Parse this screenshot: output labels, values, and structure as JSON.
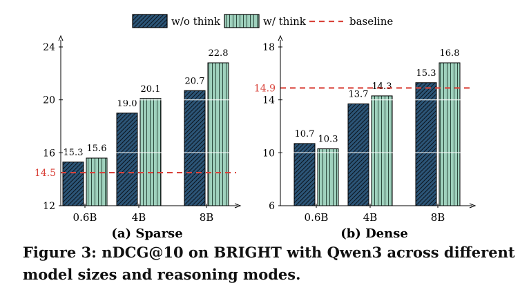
{
  "legend": {
    "wo_label": "w/o think",
    "w_label": "w/ think",
    "baseline_label": "baseline"
  },
  "colors": {
    "wo_fill": "#2c5577",
    "w_fill": "#9fd1bd",
    "baseline": "#d9433b",
    "axis": "#000000",
    "grid": "#ffffff"
  },
  "chart_data": [
    {
      "type": "bar",
      "title": "(a) Sparse",
      "categories": [
        "0.6B",
        "4B",
        "8B"
      ],
      "series": [
        {
          "name": "w/o think",
          "values": [
            15.3,
            19.0,
            20.7
          ]
        },
        {
          "name": "w/ think",
          "values": [
            15.6,
            20.1,
            22.8
          ]
        }
      ],
      "value_labels": [
        [
          "15.3",
          "19.0",
          "20.7"
        ],
        [
          "15.6",
          "20.1",
          "22.8"
        ]
      ],
      "baseline": 14.5,
      "baseline_label": "14.5",
      "ylim": [
        12,
        24
      ],
      "yticks": [
        12,
        16,
        20,
        24
      ],
      "ytick_labels": [
        "12",
        "16",
        "20",
        "24"
      ],
      "xlabel": "",
      "ylabel": ""
    },
    {
      "type": "bar",
      "title": "(b) Dense",
      "categories": [
        "0.6B",
        "4B",
        "8B"
      ],
      "series": [
        {
          "name": "w/o think",
          "values": [
            10.7,
            13.7,
            15.3
          ]
        },
        {
          "name": "w/ think",
          "values": [
            10.3,
            14.3,
            16.8
          ]
        }
      ],
      "value_labels": [
        [
          "10.7",
          "13.7",
          "15.3"
        ],
        [
          "10.3",
          "14.3",
          "16.8"
        ]
      ],
      "baseline": 14.9,
      "baseline_label": "14.9",
      "ylim": [
        6,
        18
      ],
      "yticks": [
        6,
        10,
        14,
        18
      ],
      "ytick_labels": [
        "6",
        "10",
        "14",
        "18"
      ],
      "xlabel": "",
      "ylabel": ""
    }
  ],
  "caption": "Figure 3: nDCG@10 on BRIGHT with Qwen3 across different model sizes and reasoning modes."
}
